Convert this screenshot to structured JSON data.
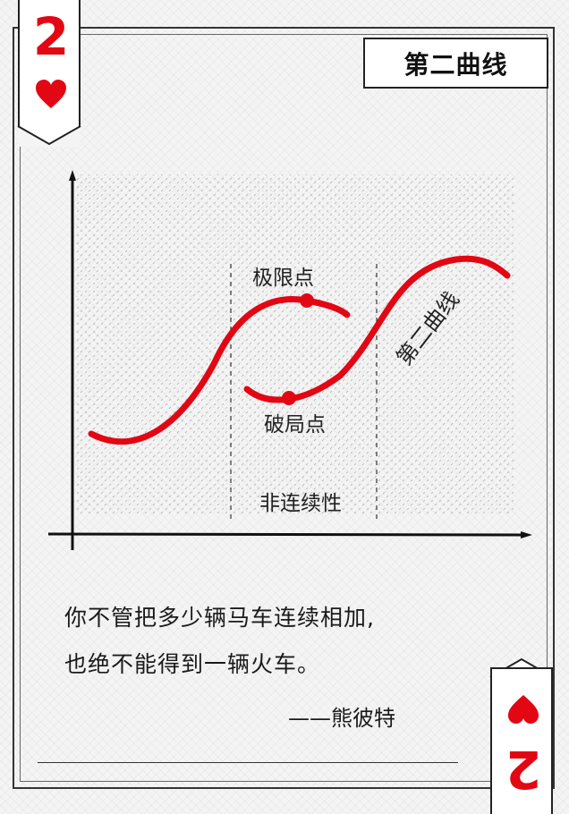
{
  "card": {
    "rank": "2",
    "suit": "heart-icon",
    "title": "第二曲线",
    "accent_color": "#e30613"
  },
  "diagram": {
    "limit_point_label": "极限点",
    "breakout_point_label": "破局点",
    "second_curve_label": "第二曲线",
    "discontinuity_label": "非连续性"
  },
  "quote": {
    "line1": "你不管把多少辆马车连续相加,",
    "line2": "也绝不能得到一辆火车。",
    "author": "——熊彼特"
  }
}
